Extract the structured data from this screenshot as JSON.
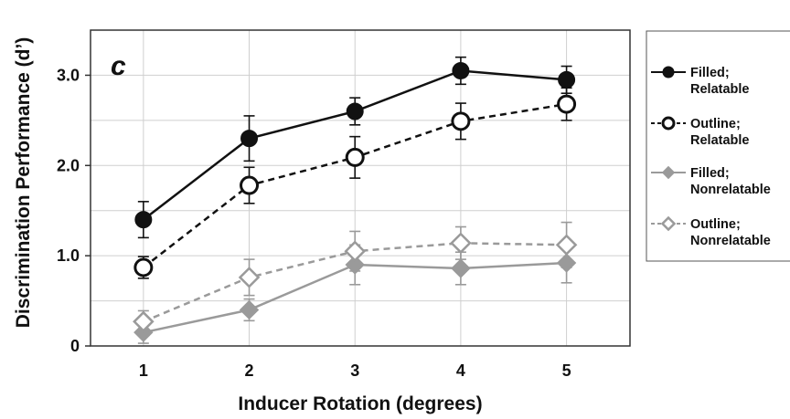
{
  "chart_data": {
    "type": "line",
    "panel_label": "c",
    "xlabel": "Inducer Rotation (degrees)",
    "ylabel": "Discrimination Performance (d’)",
    "x": [
      1,
      2,
      3,
      4,
      5
    ],
    "xlim": [
      0.5,
      5.6
    ],
    "ylim": [
      0,
      3.5
    ],
    "xticks": [
      "1",
      "2",
      "3",
      "4",
      "5"
    ],
    "yticks": [
      {
        "value": 0,
        "label": "0"
      },
      {
        "value": 1,
        "label": "1.0"
      },
      {
        "value": 2,
        "label": "2.0"
      },
      {
        "value": 3,
        "label": "3.0"
      }
    ],
    "grid": true,
    "legend_position": "right, outside",
    "series": [
      {
        "name_lines": [
          "Filled;",
          "Relatable"
        ],
        "marker": "circle",
        "fill": "filled",
        "line": "solid",
        "color": "#111111",
        "values": [
          1.4,
          2.3,
          2.6,
          3.05,
          2.95
        ],
        "errors": [
          0.2,
          0.25,
          0.15,
          0.15,
          0.15
        ]
      },
      {
        "name_lines": [
          "Outline;",
          "Relatable"
        ],
        "marker": "circle",
        "fill": "open",
        "line": "dashed",
        "color": "#111111",
        "values": [
          0.87,
          1.78,
          2.09,
          2.49,
          2.68
        ],
        "errors": [
          0.12,
          0.2,
          0.23,
          0.2,
          0.18
        ]
      },
      {
        "name_lines": [
          "Filled;",
          "Nonrelatable"
        ],
        "marker": "diamond",
        "fill": "filled",
        "line": "solid",
        "color": "#9a9a9a",
        "values": [
          0.15,
          0.4,
          0.9,
          0.86,
          0.92
        ],
        "errors": [
          0.12,
          0.12,
          0.22,
          0.18,
          0.22
        ]
      },
      {
        "name_lines": [
          "Outline;",
          "Nonrelatable"
        ],
        "marker": "diamond",
        "fill": "open",
        "line": "dashed",
        "color": "#9a9a9a",
        "values": [
          0.27,
          0.76,
          1.05,
          1.14,
          1.12
        ],
        "errors": [
          0.12,
          0.2,
          0.22,
          0.18,
          0.25
        ]
      }
    ]
  }
}
